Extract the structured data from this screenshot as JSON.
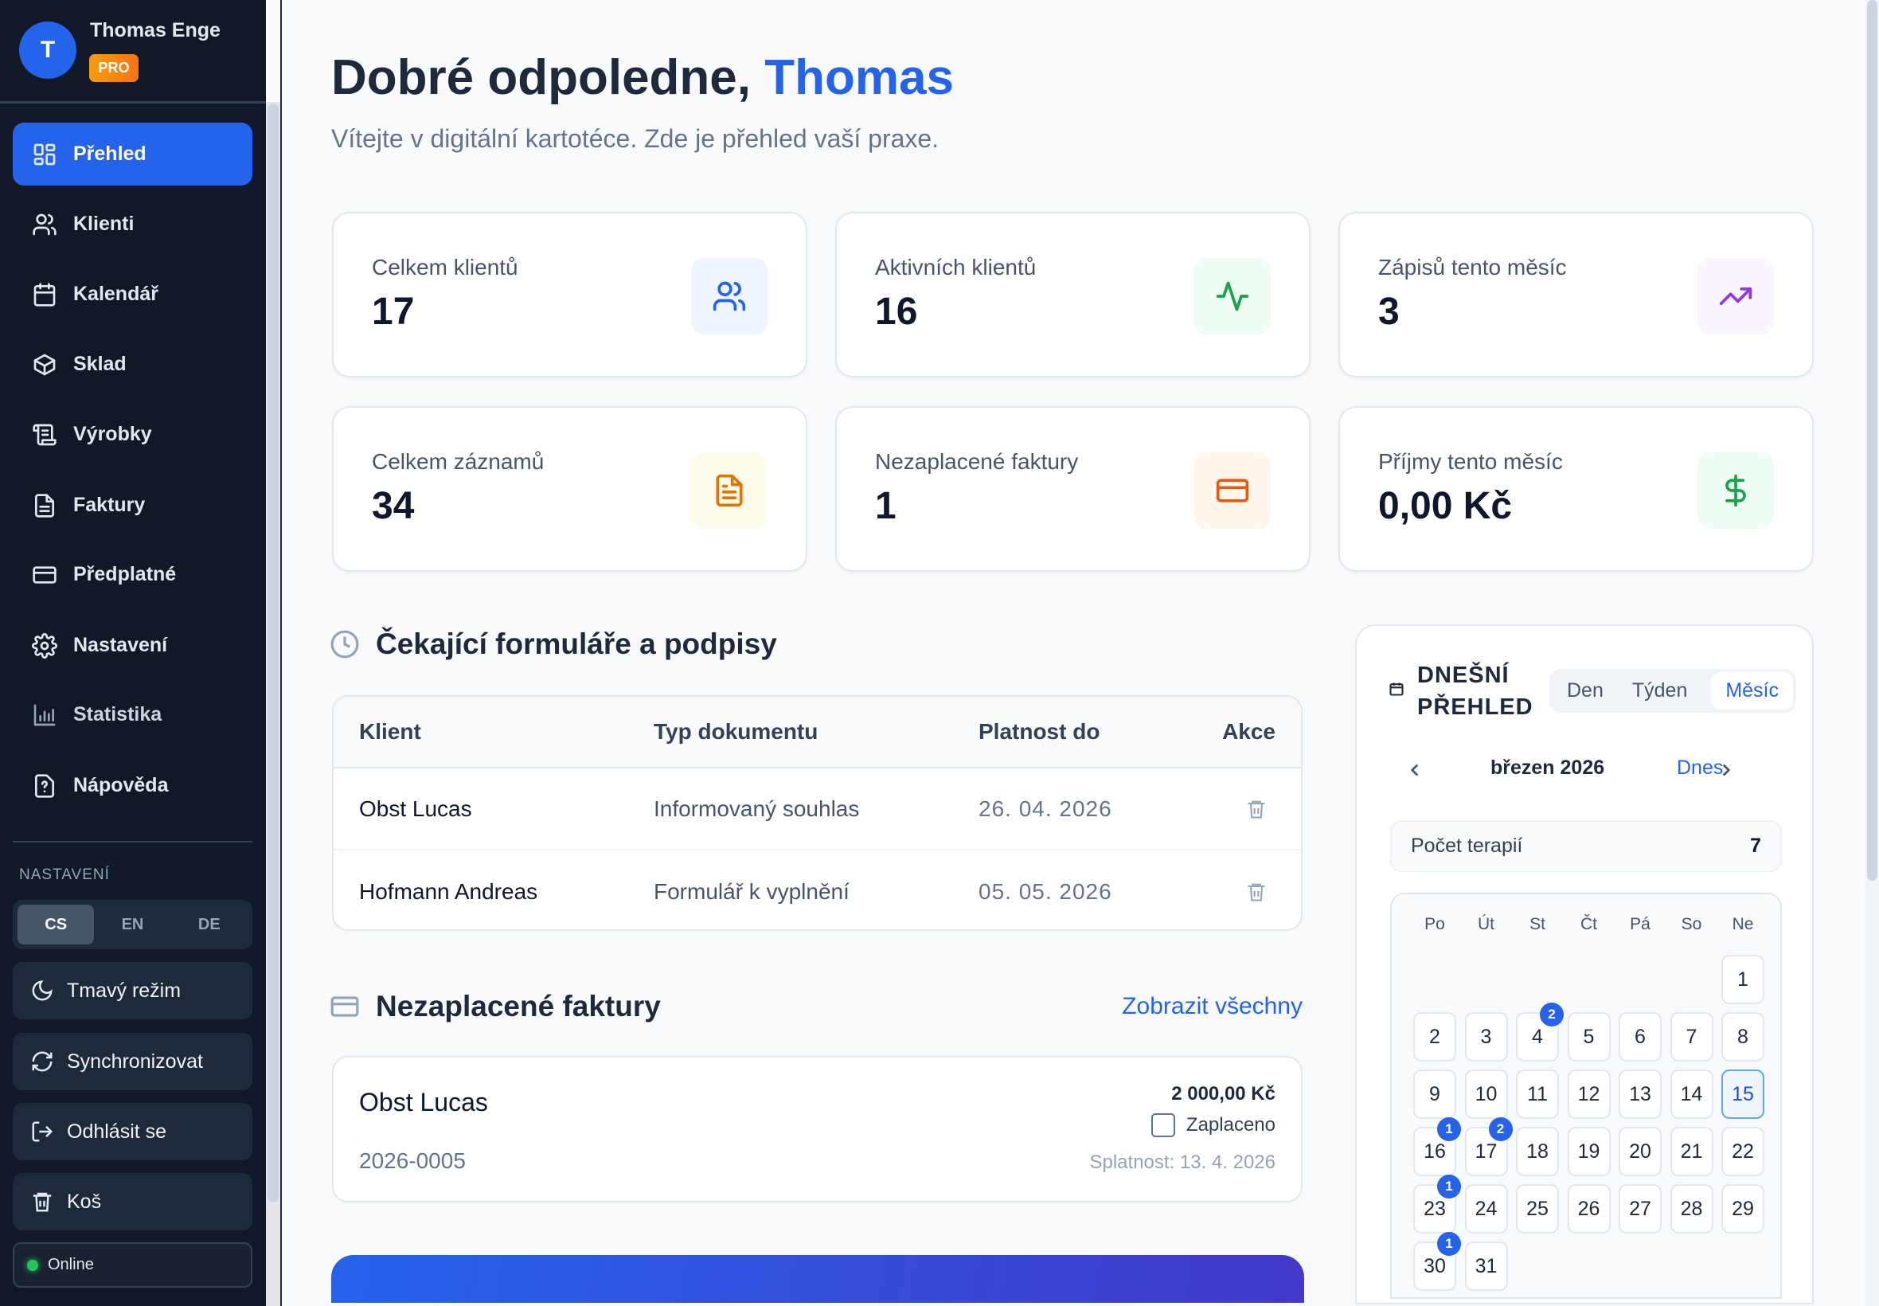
{
  "user": {
    "initial": "T",
    "name": "Thomas Enge",
    "badge": "PRO"
  },
  "nav": [
    {
      "label": "Přehled",
      "icon": "grid"
    },
    {
      "label": "Klienti",
      "icon": "users"
    },
    {
      "label": "Kalendář",
      "icon": "calendar"
    },
    {
      "label": "Sklad",
      "icon": "box"
    },
    {
      "label": "Výrobky",
      "icon": "scroll"
    },
    {
      "label": "Faktury",
      "icon": "file"
    },
    {
      "label": "Předplatné",
      "icon": "credit-card"
    },
    {
      "label": "Nastavení",
      "icon": "gear"
    },
    {
      "label": "Statistika",
      "icon": "bar-chart"
    },
    {
      "label": "Nápověda",
      "icon": "help"
    }
  ],
  "settings": {
    "label": "NASTAVENÍ",
    "languages": [
      "CS",
      "EN",
      "DE"
    ],
    "active_language": "CS",
    "dark_mode": "Tmavý režim",
    "sync": "Synchronizovat",
    "logout": "Odhlásit se",
    "trash": "Koš",
    "status": "Online"
  },
  "header": {
    "greeting": "Dobré odpoledne,",
    "name": "Thomas",
    "subtitle": "Vítejte v digitální kartotéce. Zde je přehled vaší praxe."
  },
  "stats": [
    {
      "label": "Celkem klientů",
      "value": "17",
      "icon": "users",
      "color": "#2563eb",
      "bg": "#eff6ff"
    },
    {
      "label": "Aktivních klientů",
      "value": "16",
      "icon": "activity",
      "color": "#16a34a",
      "bg": "#f0fdf4"
    },
    {
      "label": "Zápisů tento měsíc",
      "value": "3",
      "icon": "trending-up",
      "color": "#9333ea",
      "bg": "#faf5ff"
    },
    {
      "label": "Celkem záznamů",
      "value": "34",
      "icon": "file-text",
      "color": "#d97706",
      "bg": "#fffbeb"
    },
    {
      "label": "Nezaplacené faktury",
      "value": "1",
      "icon": "credit-card",
      "color": "#ea580c",
      "bg": "#fff7ed"
    },
    {
      "label": "Příjmy tento měsíc",
      "value": "0,00 Kč",
      "icon": "dollar",
      "color": "#16a34a",
      "bg": "#f0fdf4"
    }
  ],
  "pending": {
    "title": "Čekající formuláře a podpisy",
    "columns": [
      "Klient",
      "Typ dokumentu",
      "Platnost do",
      "Akce"
    ],
    "rows": [
      {
        "client": "Obst Lucas",
        "type": "Informovaný souhlas",
        "valid": "26. 04. 2026"
      },
      {
        "client": "Hofmann Andreas",
        "type": "Formulář k vyplnění",
        "valid": "05. 05. 2026"
      }
    ]
  },
  "invoices": {
    "title": "Nezaplacené faktury",
    "view_all": "Zobrazit všechny",
    "items": [
      {
        "client": "Obst Lucas",
        "number": "2026-0005",
        "amount": "2 000,00 Kč",
        "paid_label": "Zaplaceno",
        "paid": false,
        "due": "Splatnost: 13. 4. 2026"
      }
    ]
  },
  "calendar": {
    "title_line1": "DNEŠNÍ",
    "title_line2": "PŘEHLED",
    "views": [
      "Den",
      "Týden",
      "Měsíc"
    ],
    "active_view": "Měsíc",
    "month": "březen 2026",
    "today_label": "Dnes",
    "count_label": "Počet terapií",
    "count": "7",
    "weekdays": [
      "Po",
      "Út",
      "St",
      "Čt",
      "Pá",
      "So",
      "Ne"
    ],
    "first_weekday_index": 6,
    "days_in_month": 31,
    "today": 15,
    "badges": {
      "4": 2,
      "16": 1,
      "17": 2,
      "23": 1,
      "30": 1
    }
  }
}
